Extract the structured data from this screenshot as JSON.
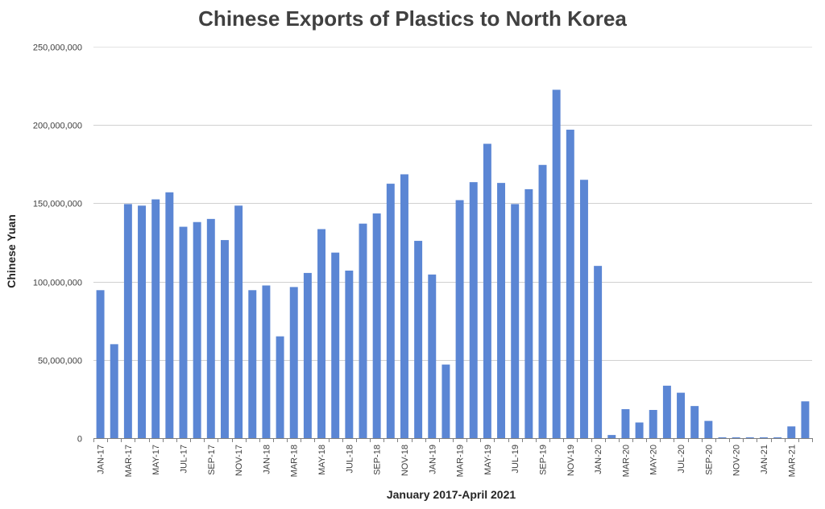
{
  "chart_data": {
    "type": "bar",
    "title": "Chinese Exports of Plastics to North Korea",
    "xlabel": "January 2017-April 2021",
    "ylabel": "Chinese Yuan",
    "ylim": [
      0,
      250000000
    ],
    "yticks": [
      0,
      50000000,
      100000000,
      150000000,
      200000000,
      250000000
    ],
    "ytick_labels": [
      "0",
      "50,000,000",
      "100,000,000",
      "150,000,000",
      "200,000,000",
      "250,000,000"
    ],
    "grid": "horizontal",
    "bar_color": "#5B86D4",
    "categories": [
      "JAN-17",
      "FEB-17",
      "MAR-17",
      "APR-17",
      "MAY-17",
      "JUN-17",
      "JUL-17",
      "AUG-17",
      "SEP-17",
      "OCT-17",
      "NOV-17",
      "DEC-17",
      "JAN-18",
      "FEB-18",
      "MAR-18",
      "APR-18",
      "MAY-18",
      "JUN-18",
      "JUL-18",
      "AUG-18",
      "SEP-18",
      "OCT-18",
      "NOV-18",
      "DEC-18",
      "JAN-19",
      "FEB-19",
      "MAR-19",
      "APR-19",
      "MAY-19",
      "JUN-19",
      "JUL-19",
      "AUG-19",
      "SEP-19",
      "OCT-19",
      "NOV-19",
      "DEC-19",
      "JAN-20",
      "FEB-20",
      "MAR-20",
      "APR-20",
      "MAY-20",
      "JUN-20",
      "JUL-20",
      "AUG-20",
      "SEP-20",
      "OCT-20",
      "NOV-20",
      "DEC-20",
      "JAN-21",
      "FEB-21",
      "MAR-21",
      "APR-21"
    ],
    "tick_labels": [
      "JAN-17",
      "",
      "MAR-17",
      "",
      "MAY-17",
      "",
      "JUL-17",
      "",
      "SEP-17",
      "",
      "NOV-17",
      "",
      "JAN-18",
      "",
      "MAR-18",
      "",
      "MAY-18",
      "",
      "JUL-18",
      "",
      "SEP-18",
      "",
      "NOV-18",
      "",
      "JAN-19",
      "",
      "MAR-19",
      "",
      "MAY-19",
      "",
      "JUL-19",
      "",
      "SEP-19",
      "",
      "NOV-19",
      "",
      "JAN-20",
      "",
      "MAR-20",
      "",
      "MAY-20",
      "",
      "JUL-20",
      "",
      "SEP-20",
      "",
      "NOV-20",
      "",
      "JAN-21",
      "",
      "MAR-21",
      ""
    ],
    "values": [
      94500000,
      60000000,
      149500000,
      148500000,
      152500000,
      157000000,
      135000000,
      138000000,
      140000000,
      126500000,
      148500000,
      94500000,
      97500000,
      65000000,
      96500000,
      105500000,
      133500000,
      118500000,
      107000000,
      137000000,
      143500000,
      162500000,
      168500000,
      126000000,
      104500000,
      47000000,
      152000000,
      163500000,
      188000000,
      163000000,
      149500000,
      159000000,
      174500000,
      222500000,
      197000000,
      165000000,
      110000000,
      2000000,
      18500000,
      10000000,
      18000000,
      33500000,
      29000000,
      20500000,
      11000000,
      500000,
      500000,
      500000,
      500000,
      500000,
      7500000,
      23500000
    ]
  }
}
